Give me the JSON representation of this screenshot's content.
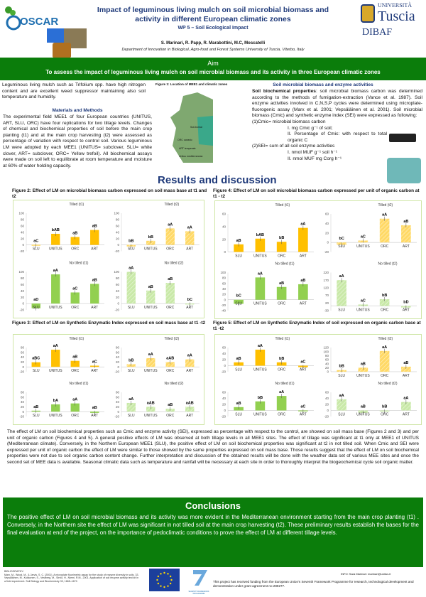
{
  "header": {
    "logo_left": "OSCAR",
    "title": "Impact of leguminous living mulch on soil microbial biomass and activity in different European climatic zones",
    "wp": "WP 5 – Soil Ecological Impact",
    "authors": "S. Marinari, R. Papp, R. Marabottini, M.C, Moscatelli",
    "department": "Department of Innovation in Biological, Agro-food and Forest Systems University of Tuscia, Viterbo, Italy",
    "logo_right_top": "UNIVERSITÀ",
    "logo_right_name": "Tuscia",
    "logo_right_dept": "DIBAF"
  },
  "aim": {
    "heading": "Aim",
    "text": "To assess the impact of leguminous living mulch on soil microbial biomass and its activity in three European climatic zones"
  },
  "intro": "Leguminous living mulch such as Trifolium spp. have high nitrogen content and are excellent weed suppressor maintaining also soil temperature and humidity.",
  "methods": {
    "heading": "Materials and Methods",
    "text": "The experimental field MEE1 of four European countries (UNITUS, ART, SLU, ORC) have four replications for two tillage levels. Changes of chemical and biochemical properties of soil before the main crop planting (t1) and at the main crop harvesting (t2) were assessed as percentage of variation with respect to control soil. Various leguminous LM were adopted by each MEE1 (UNITUS= subclover, SLU= white clover, ART= subclover, ORC= Yellow trefoil). All biochemical assays were made on soil left to equilibrate at room temperature and moisture at 60% of water holding capacity."
  },
  "figure1": {
    "title": "Figure 1: Location of MEE1 and climatic zones",
    "labels": [
      "Soil-boreal",
      "ORC oceanic",
      "ART temperate",
      "Unitus mediterranean"
    ]
  },
  "soil": {
    "heading": "Soil microbial biomass and  enzyme activities",
    "lead": "Soil biochemical properties",
    "text": ": soil microbial biomass carbon was determined according to the methods of fumigation-extraction (Vance et al. 1987). Soil enzyme activities involved in C,N,S,P cycles were determined using microplate-fluorogenic assay (Marx et al. 2001; Vepsäläinen et al. 2001). Soil microbial biomass (Cmic) and synthetic enzyme index (SEI) were expressed as following:",
    "cmic": "(1)Cmic= microbial biomass carbon",
    "cmic_items": [
      "I.   mg Cmic g⁻¹ of soil;",
      "II.  Percentage of Cmic: with respect to total organic C"
    ],
    "sei": "(2)SEI= sum of all  soil  enzyme activities",
    "sei_items": [
      "I.   nmol MUF g⁻¹ soil h⁻¹",
      "II.  nmol MUF mg Corg h⁻¹"
    ]
  },
  "results_heading": "Results and discussion",
  "colors": {
    "tilled_t1": "#FFC000",
    "tilled_t2": "#FFD966",
    "notilled_t1": "#92D050",
    "notilled_t2": "#C9E9A8",
    "green_band": "#0b7d0b",
    "heading_blue": "#1f3a7a"
  },
  "chart_data": [
    {
      "title": "Figure 2: Effect of LM on microbial biomass carbon expressed  on soil mass base at t1 and t2",
      "type": "bar",
      "categories": [
        "SLU",
        "UNITUS",
        "ORC",
        "ART"
      ],
      "panels": [
        {
          "name": "Tilled (t1)",
          "values": [
            -2,
            35,
            25,
            47
          ],
          "labels": [
            "aC",
            "bAB",
            "aB",
            "aB"
          ],
          "ylim": [
            -20,
            100
          ],
          "ticks": [
            -20,
            0,
            20,
            40,
            60,
            80,
            100
          ]
        },
        {
          "name": "Tilled (t2)",
          "values": [
            -5,
            13,
            52,
            43
          ],
          "labels": [
            "bB",
            "bB",
            "aA",
            "aA"
          ],
          "ylim": [
            -20,
            100
          ],
          "ticks": [
            -20,
            0,
            20,
            40,
            60,
            80,
            100
          ]
        },
        {
          "name": "No tilled (t1)",
          "values": [
            -15,
            92,
            35,
            62
          ],
          "labels": [
            "aD",
            "aA",
            "aC",
            "aB"
          ],
          "ylim": [
            -20,
            100
          ],
          "ticks": [
            -20,
            0,
            20,
            40,
            60,
            80,
            100
          ]
        },
        {
          "name": "No tilled (t2)",
          "values": [
            100,
            41,
            65,
            -3
          ],
          "labels": [
            "aA",
            "aB",
            "aB",
            "bC"
          ],
          "ylim": [
            -20,
            100
          ],
          "ticks": [
            -20,
            0,
            20,
            40,
            60,
            80,
            100
          ]
        }
      ]
    },
    {
      "title": "Figure 3: Effect of LM on Synthetic Enzymatic Index expressed  on soil mass base at t1 -t2",
      "type": "bar",
      "categories": [
        "SLU",
        "UNITUS",
        "ORC",
        "ART"
      ],
      "panels": [
        {
          "name": "Tilled (t1)",
          "values": [
            19,
            71,
            25,
            5
          ],
          "labels": [
            "aBC",
            "aA",
            "aB",
            "aC"
          ],
          "ylim": [
            -20,
            80
          ],
          "ticks": [
            -20,
            0,
            20,
            40,
            60,
            80
          ]
        },
        {
          "name": "Tilled (t2)",
          "values": [
            11,
            36,
            20,
            31
          ],
          "labels": [
            "bB",
            "aA",
            "aAB",
            "aA"
          ],
          "ylim": [
            -20,
            80
          ],
          "ticks": [
            -20,
            0,
            20,
            40,
            60,
            80
          ]
        },
        {
          "name": "No tilled (t1)",
          "values": [
            4,
            30,
            34,
            -5
          ],
          "labels": [
            "aB",
            "bA",
            "aA",
            "aB"
          ],
          "ylim": [
            -20,
            80
          ],
          "ticks": [
            -20,
            0,
            20,
            40,
            60,
            80
          ]
        },
        {
          "name": "No tilled (t2)",
          "values": [
            36,
            20,
            12,
            20
          ],
          "labels": [
            "aA",
            "aAB",
            "aB",
            "aAB"
          ],
          "ylim": [
            -20,
            80
          ],
          "ticks": [
            -20,
            0,
            20,
            40,
            60,
            80
          ]
        }
      ]
    },
    {
      "title": "Figure 4: Effect of LM on soil microbial biomass carbon expressed  per unit of organic carbon at t1 - t2",
      "type": "bar",
      "categories": [
        "SLU",
        "UNITUS",
        "ORC",
        "ART"
      ],
      "panels": [
        {
          "name": "Tilled (t1)",
          "values": [
            12,
            21,
            16,
            38
          ],
          "labels": [
            "aB",
            "bAB",
            "bB",
            "aA"
          ],
          "ylim": [
            0,
            60
          ],
          "ticks": [
            0,
            20,
            40,
            60
          ]
        },
        {
          "name": "Tilled (t2)",
          "values": [
            -5,
            4,
            50,
            36
          ],
          "labels": [
            "bC",
            "aC",
            "aA",
            "aB"
          ],
          "ylim": [
            -20,
            60
          ],
          "ticks": [
            -20,
            0,
            20,
            40,
            60
          ]
        },
        {
          "name": "No tilled (t1)",
          "values": [
            -15,
            82,
            47,
            57
          ],
          "labels": [
            "bC",
            "aA",
            "aB",
            "aB"
          ],
          "ylim": [
            -40,
            100
          ],
          "ticks": [
            -40,
            -20,
            0,
            20,
            40,
            60,
            80,
            100
          ]
        },
        {
          "name": "No tilled (t2)",
          "values": [
            170,
            10,
            45,
            -10
          ],
          "labels": [
            "aA",
            "aC",
            "bB",
            "bD"
          ],
          "ylim": [
            -30,
            220
          ],
          "ticks": [
            -30,
            20,
            70,
            120,
            170,
            220
          ]
        }
      ]
    },
    {
      "title": "Figure 5: Effect of LM on Synthetic Enzymatic Index of soil expressed  on organic carbon base at t1 -t2",
      "type": "bar",
      "categories": [
        "SLU",
        "UNITUS",
        "ORC",
        "ART"
      ],
      "panels": [
        {
          "name": "Tilled (t1)",
          "values": [
            11,
            53,
            11,
            -5
          ],
          "labels": [
            "aB",
            "aA",
            "bB",
            "aC"
          ],
          "ylim": [
            -20,
            60
          ],
          "ticks": [
            -20,
            0,
            20,
            40,
            60
          ]
        },
        {
          "name": "Tilled (t2)",
          "values": [
            8,
            20,
            103,
            25
          ],
          "labels": [
            "bB",
            "aB",
            "aA",
            "aB"
          ],
          "ylim": [
            0,
            120
          ],
          "ticks": [
            0,
            20,
            40,
            60,
            80,
            100,
            120
          ]
        },
        {
          "name": "No tilled (t1)",
          "values": [
            11,
            30,
            48,
            -3
          ],
          "labels": [
            "aB",
            "bB",
            "aA",
            "aC"
          ],
          "ylim": [
            -20,
            60
          ],
          "ticks": [
            -20,
            0,
            20,
            40,
            60
          ]
        },
        {
          "name": "No tilled (t2)",
          "values": [
            37,
            -8,
            -4,
            28
          ],
          "labels": [
            "aA",
            "aB",
            "bB",
            "aA"
          ],
          "ylim": [
            -20,
            60
          ],
          "ticks": [
            -20,
            0,
            20,
            40,
            60
          ]
        }
      ]
    }
  ],
  "discussion": "The effect of LM on soil biochemical properties such as Cmic and enzyme activity (SEI), expressed as percentage with respect to the control, are showed on soil mass base (Figures 2 and 3) and per unit of organic carbon (Figures 4 and 5). A general positive effects of LM was observed at both tillage levels in all MEE1 sites. The effect of tillage was significant at t1 only at MEE1 of UNITUS (Mediterranean climate). Conversely, in the Northern European MEE1 (SLU), the positive effect of LM on soil biochemical properties was significant at t2 in not tilled soil. When Cmic and SEI were expressed per unit of organic carbon the effect of LM were similar to those showed by the same properties expressed on soil mass base. Those results suggest that the effect of LM on soil biochemical properties were not due to soil organic carbon content change. Further interpretation and discussion of the obtained results will be done with the weather data set of various MEE sites and once the second set of MEE data is available. Seasonal climatic data such as temperature and rainfall will be necessary at each site in order to thoroughly interpret the biogeochemical cycle soil organic matter.",
  "conclusions": {
    "heading": "Conclusions",
    "text": "The positive effect of LM on soil microbial biomass and its activity was more evident in the Mediterranean environment starting from the main crop planting (t1) . Conversely, in the Northern site the effect of LM was significant in not tilled soil at the main crop harvesting (t2). These preliminary results establish the bases for the final evaluation at end of the project, on the importance of pedoclimatic conditions to prove the effect of LM at different tillage levels."
  },
  "footer": {
    "bib_heading": "BIBLIOGRAPHY:",
    "bib": "Marx, M., Wood, M., & Jarvis, S. C. (2001). A microplate fluorimetric assay for the study of enzyme diversity in soils. 33. Vepsäläinen, M., Kukkonen, S., Vestberg, M., Sirviö, H., Niemi, R.M., 2001. Application of soil enzyme activity test kit in a field experiment. Soil Biology and Biochemistry 33, 1665–1672.",
    "fp7": "SEVENTH FRAMEWORK PROGRAMME",
    "info": "INFO: Sara Marinari: marinari@unitus.it",
    "funding": "This project has received funding from the European Union's Seventh Framework Programme for research, technological development and demonstration under grant agreement no 289277."
  }
}
